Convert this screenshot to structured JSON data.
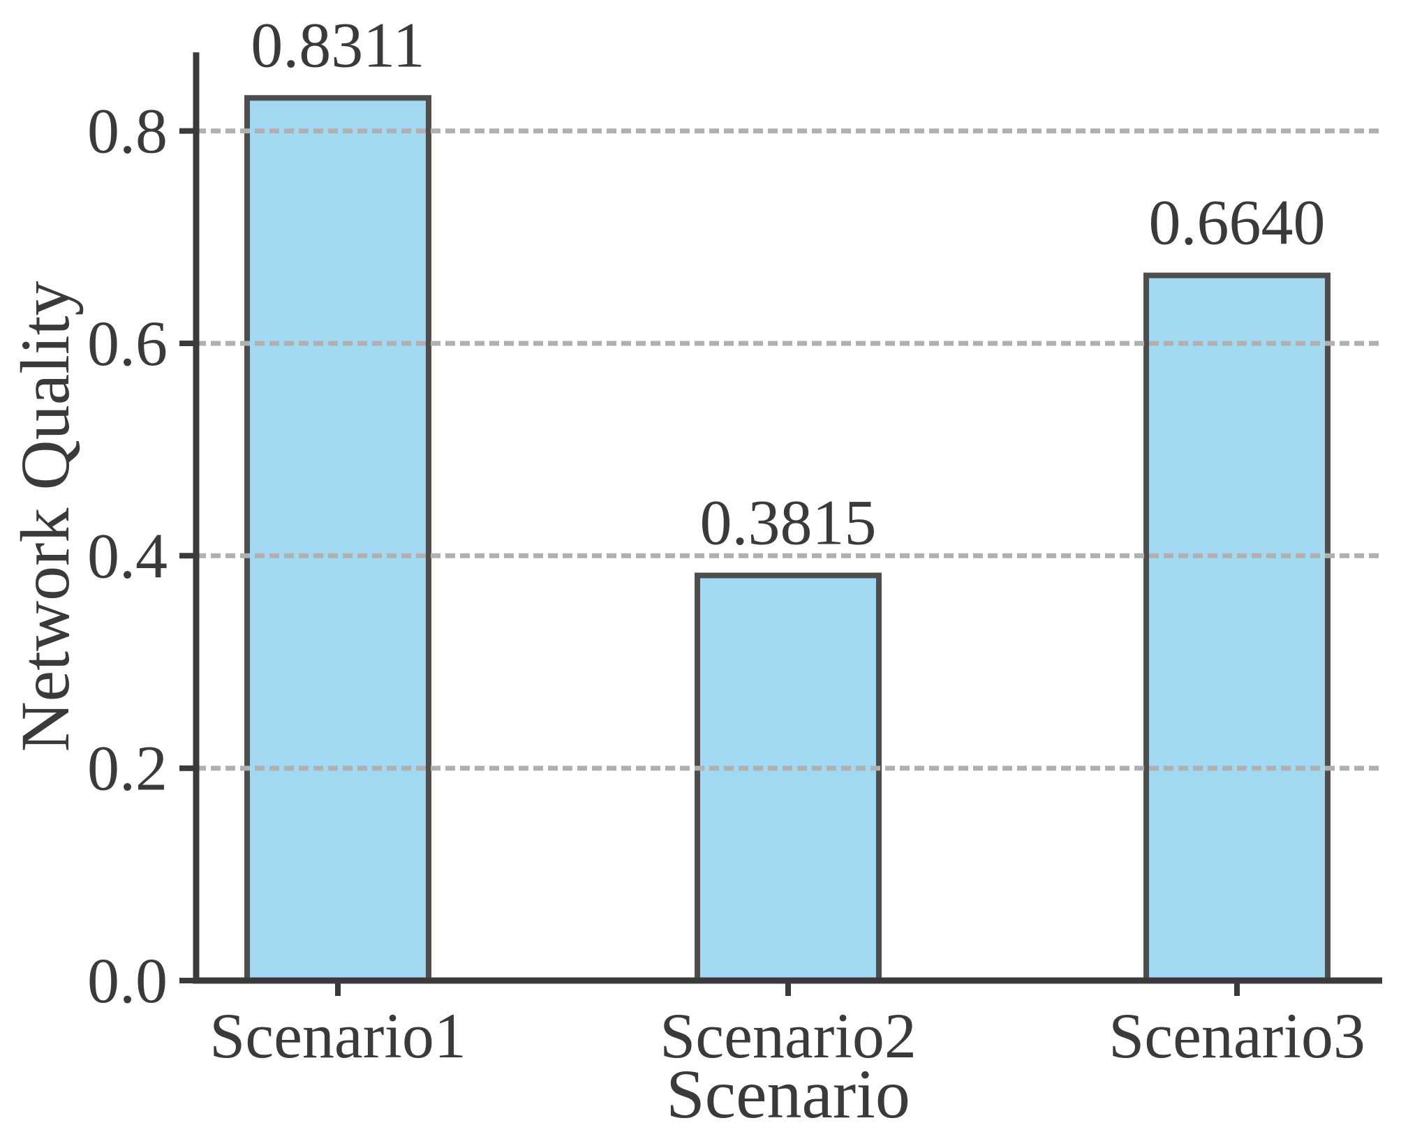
{
  "chart_data": {
    "type": "bar",
    "title": "",
    "xlabel": "Scenario",
    "ylabel": "Network Quality",
    "categories": [
      "Scenario1",
      "Scenario2",
      "Scenario3"
    ],
    "values": [
      0.8311,
      0.3815,
      0.664
    ],
    "value_labels": [
      "0.8311",
      "0.3815",
      "0.6640"
    ],
    "ylim": [
      0,
      0.874
    ],
    "yticks": [
      0,
      0.2,
      0.4,
      0.6,
      0.8
    ],
    "ytick_labels": [
      "0.0",
      "0.2",
      "0.4",
      "0.6",
      "0.8"
    ],
    "grid": {
      "axis": "y",
      "style": "dashed",
      "visible": true
    },
    "legend_position": "none",
    "colors": {
      "bar_fill": "#a3d8f2",
      "bar_edge": "#4d4d4d",
      "grid": "#b0b0b0",
      "axis": "#3a3a3a",
      "text": "#3a3a3a",
      "background": "#ffffff"
    }
  }
}
